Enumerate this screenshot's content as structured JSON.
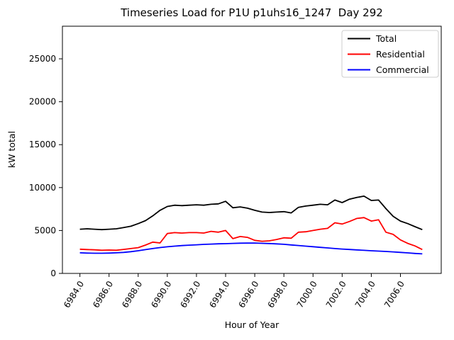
{
  "figure": {
    "background": "#ffffff",
    "axes_facecolor": "#ffffff",
    "spine_color": "#000000"
  },
  "chart_data": {
    "type": "line",
    "title": "Timeseries Load for P1U p1uhs16_1247  Day 292",
    "xlabel": "Hour of Year",
    "ylabel": "kW total",
    "xlim": [
      6982.8,
      7008.8
    ],
    "ylim": [
      0,
      28800
    ],
    "grid": false,
    "xticks": [
      6984,
      6986,
      6988,
      6990,
      6992,
      6994,
      6996,
      6998,
      7000,
      7002,
      7004,
      7006
    ],
    "xtick_labels": [
      "6984.0",
      "6986.0",
      "6988.0",
      "6990.0",
      "6992.0",
      "6994.0",
      "6996.0",
      "6998.0",
      "7000.0",
      "7002.0",
      "7004.0",
      "7006.0"
    ],
    "yticks": [
      0,
      5000,
      10000,
      15000,
      20000,
      25000
    ],
    "ytick_labels": [
      "0",
      "5000",
      "10000",
      "15000",
      "20000",
      "25000"
    ],
    "x": [
      6984.0,
      6984.5,
      6985.0,
      6985.5,
      6986.0,
      6986.5,
      6987.0,
      6987.5,
      6988.0,
      6988.5,
      6989.0,
      6989.5,
      6990.0,
      6990.5,
      6991.0,
      6991.5,
      6992.0,
      6992.5,
      6993.0,
      6993.5,
      6994.0,
      6994.5,
      6995.0,
      6995.5,
      6996.0,
      6996.5,
      6997.0,
      6997.5,
      6998.0,
      6998.5,
      6999.0,
      6999.5,
      7000.0,
      7000.5,
      7001.0,
      7001.5,
      7002.0,
      7002.5,
      7003.0,
      7003.5,
      7004.0,
      7004.5,
      7005.0,
      7005.5,
      7006.0,
      7006.5,
      7007.0,
      7007.5
    ],
    "series": [
      {
        "name": "Total",
        "color": "#000000",
        "values": [
          5150,
          5200,
          5150,
          5100,
          5150,
          5200,
          5350,
          5500,
          5800,
          6150,
          6700,
          7350,
          7800,
          7950,
          7900,
          7950,
          8000,
          7950,
          8050,
          8100,
          8400,
          7650,
          7750,
          7600,
          7350,
          7150,
          7100,
          7150,
          7200,
          7050,
          7700,
          7850,
          7950,
          8050,
          8000,
          8550,
          8250,
          8650,
          8850,
          9000,
          8500,
          8550,
          7550,
          6650,
          6100,
          5800,
          5450,
          5100
        ]
      },
      {
        "name": "Residential",
        "color": "#ff0000",
        "values": [
          2820,
          2780,
          2750,
          2700,
          2720,
          2700,
          2800,
          2900,
          3000,
          3300,
          3650,
          3550,
          4650,
          4750,
          4700,
          4750,
          4750,
          4700,
          4900,
          4800,
          5000,
          4050,
          4300,
          4200,
          3850,
          3750,
          3800,
          3950,
          4150,
          4100,
          4800,
          4850,
          5000,
          5150,
          5250,
          5900,
          5750,
          6050,
          6400,
          6500,
          6100,
          6250,
          4800,
          4550,
          3900,
          3500,
          3200,
          2780
        ]
      },
      {
        "name": "Commercial",
        "color": "#0000ff",
        "values": [
          2400,
          2370,
          2350,
          2350,
          2370,
          2400,
          2450,
          2530,
          2640,
          2770,
          2900,
          3010,
          3100,
          3180,
          3240,
          3290,
          3330,
          3380,
          3420,
          3450,
          3470,
          3500,
          3520,
          3530,
          3540,
          3510,
          3480,
          3440,
          3390,
          3320,
          3250,
          3180,
          3110,
          3040,
          2970,
          2900,
          2840,
          2790,
          2740,
          2690,
          2640,
          2600,
          2560,
          2510,
          2450,
          2390,
          2330,
          2280
        ]
      }
    ],
    "legend": {
      "position": "upper right",
      "entries": [
        "Total",
        "Residential",
        "Commercial"
      ],
      "border_color": "#cccccc",
      "background": "#ffffff"
    }
  }
}
